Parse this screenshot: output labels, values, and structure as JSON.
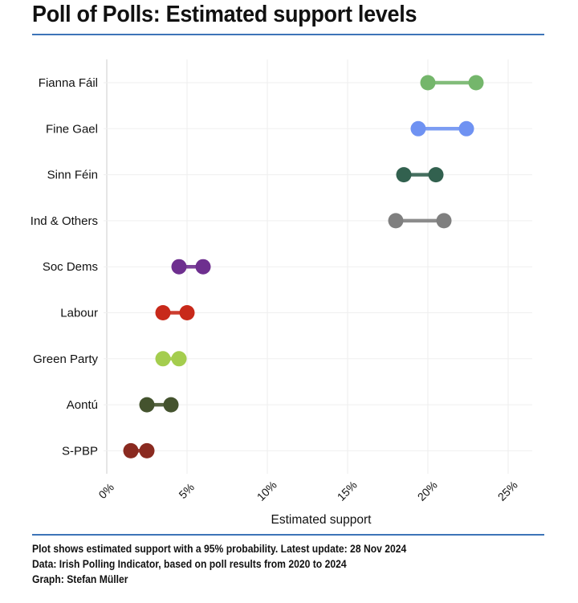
{
  "header": {
    "title": "Poll of Polls: Estimated support levels"
  },
  "footer": {
    "lines": [
      "Plot shows estimated support with a 95% probability. Latest update: 28 Nov 2024",
      "Data: Irish Polling Indicator, based on poll results from 2020 to 2024",
      "Graph: Stefan Müller"
    ]
  },
  "chart_data": {
    "type": "dumbbell",
    "title": "Poll of Polls: Estimated support levels",
    "xlabel": "Estimated support",
    "ylabel": "",
    "xlim": [
      0,
      26.5
    ],
    "x_ticks": [
      0,
      5,
      10,
      15,
      20,
      25
    ],
    "x_tick_labels": [
      "0%",
      "5%",
      "10%",
      "15%",
      "20%",
      "25%"
    ],
    "grid": true,
    "legend": "none",
    "series": [
      {
        "name": "Fianna Fáil",
        "low": 20.0,
        "high": 23.0,
        "color": "#74b66b"
      },
      {
        "name": "Fine Gael",
        "low": 19.4,
        "high": 22.4,
        "color": "#6f92f2"
      },
      {
        "name": "Sinn Féin",
        "low": 18.5,
        "high": 20.5,
        "color": "#32614f"
      },
      {
        "name": "Ind & Others",
        "low": 18.0,
        "high": 21.0,
        "color": "#7f7f7f"
      },
      {
        "name": "Soc Dems",
        "low": 4.5,
        "high": 6.0,
        "color": "#6e2f8f"
      },
      {
        "name": "Labour",
        "low": 3.5,
        "high": 5.0,
        "color": "#c8291a"
      },
      {
        "name": "Green Party",
        "low": 3.5,
        "high": 4.5,
        "color": "#a4cd4e"
      },
      {
        "name": "Aontú",
        "low": 2.5,
        "high": 4.0,
        "color": "#44532e"
      },
      {
        "name": "S-PBP",
        "low": 1.5,
        "high": 2.5,
        "color": "#8a2a20"
      }
    ]
  }
}
